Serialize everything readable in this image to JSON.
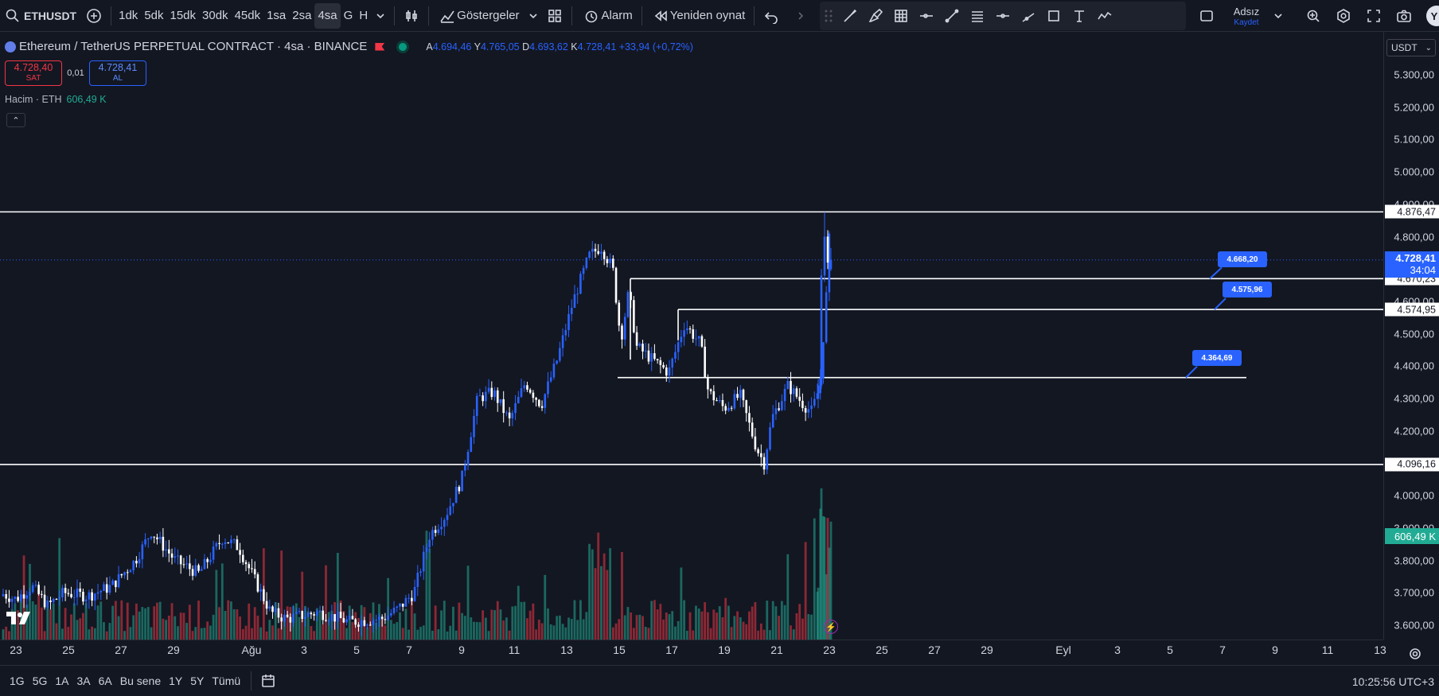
{
  "toolbar": {
    "symbol": "ETHUSDT",
    "intervals": [
      "1dk",
      "5dk",
      "15dk",
      "30dk",
      "45dk",
      "1sa",
      "2sa",
      "4sa",
      "G",
      "H"
    ],
    "active_interval": "4sa",
    "indicators_label": "Göstergeler",
    "alarm_label": "Alarm",
    "replay_label": "Yeniden oynat",
    "layout_name": "Adsız",
    "save_label": "Kaydet",
    "avatar_letter": "Y"
  },
  "legend": {
    "title": "Ethereum / TetherUS PERPETUAL CONTRACT · 4sa · BINANCE",
    "open_label": "A",
    "open": "4.694,46",
    "high_label": "Y",
    "high": "4.765,05",
    "low_label": "D",
    "low": "4.693,62",
    "close_label": "K",
    "close": "4.728,41",
    "change": "+33,94 (+0,72%)"
  },
  "trade": {
    "sell_price": "4.728,40",
    "sell_label": "SAT",
    "spread": "0,01",
    "buy_price": "4.728,41",
    "buy_label": "AL"
  },
  "volume_legend": {
    "label": "Hacim · ETH",
    "value": "606,49 K"
  },
  "price_axis": {
    "currency": "USDT",
    "ticks": [
      "5.300,00",
      "5.200,00",
      "5.100,00",
      "5.000,00",
      "4.900,00",
      "4.800,00",
      "4.700,00",
      "4.600,00",
      "4.500,00",
      "4.400,00",
      "4.300,00",
      "4.200,00",
      "4.100,00",
      "4.000,00",
      "3.900,00",
      "3.800,00",
      "3.700,00",
      "3.600,00"
    ],
    "level_labels": [
      "4.876,47",
      "4.670,23",
      "4.574,95",
      "4.096,16"
    ],
    "current_price": "4.728,41",
    "countdown": "34:04",
    "volume_value": "606,49 K"
  },
  "callouts": [
    "4.668,20",
    "4.575,96",
    "4.364,69"
  ],
  "time_axis": [
    "23",
    "25",
    "27",
    "29",
    "Ağu",
    "3",
    "5",
    "7",
    "9",
    "11",
    "13",
    "15",
    "17",
    "19",
    "21",
    "23",
    "25",
    "27",
    "29",
    "Eyl",
    "3",
    "5",
    "7",
    "9",
    "11",
    "13"
  ],
  "bottom": {
    "ranges": [
      "1G",
      "5G",
      "1A",
      "3A",
      "6A",
      "Bu sene",
      "1Y",
      "5Y",
      "Tümü"
    ],
    "clock": "10:25:56 UTC+3"
  },
  "colors": {
    "bg": "#131722",
    "up": "#2962ff",
    "down": "#ffffff",
    "vol_up": "#22ab94",
    "vol_down": "#f23645",
    "level": "#ffffff"
  },
  "chart_data": {
    "type": "candlestick",
    "ylim": [
      3500,
      5350
    ],
    "horizontal_levels": [
      4876.47,
      4670.23,
      4574.95,
      4364.69,
      4096.16
    ],
    "volume_max": 1.0,
    "candles_ohlc": []
  }
}
